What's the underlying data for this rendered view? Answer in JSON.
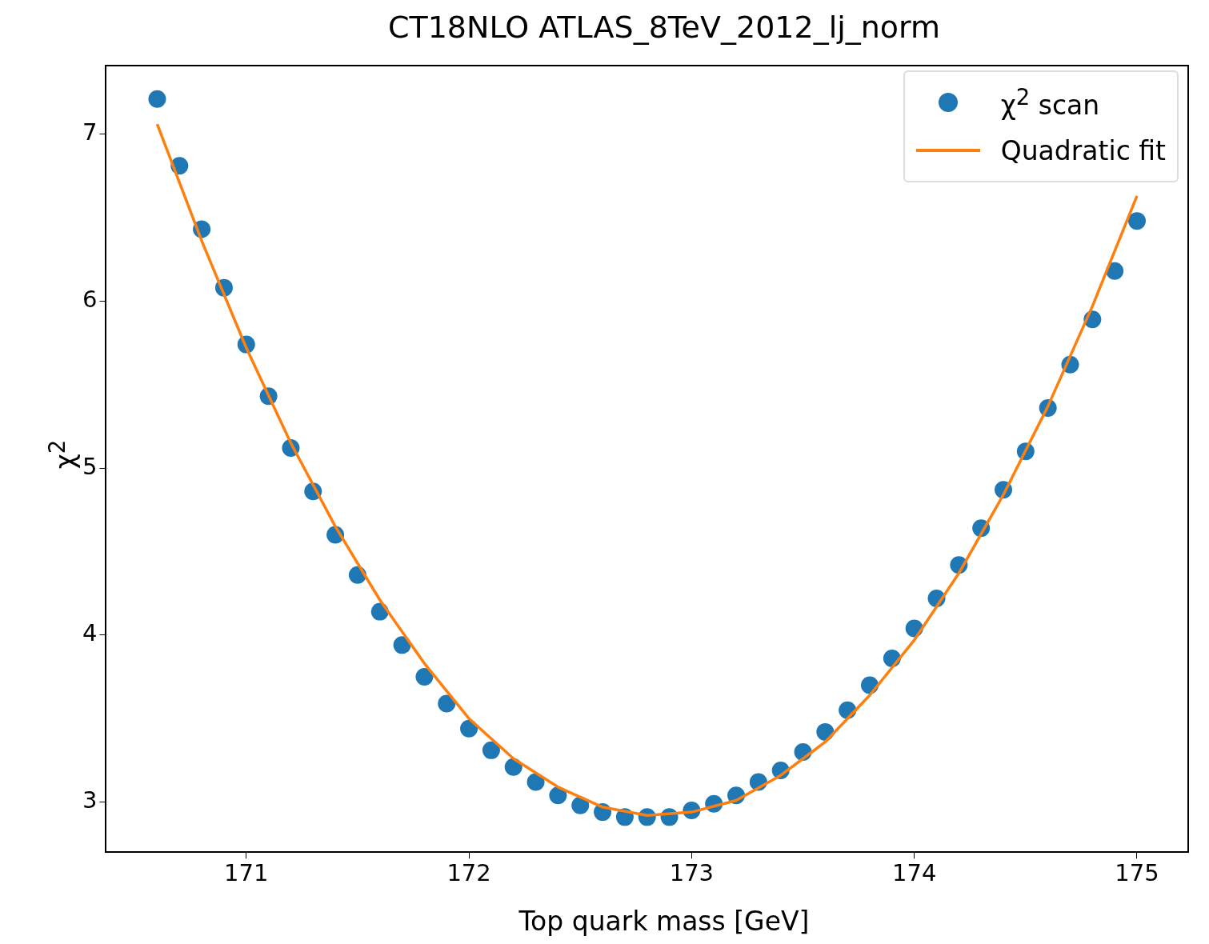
{
  "chart_data": {
    "type": "scatter",
    "title": "CT18NLO ATLAS_8TeV_2012_lj_norm",
    "xlabel": "Top quark mass [GeV]",
    "ylabel": "χ$^{2}$",
    "xlim": [
      170.37,
      175.23
    ],
    "ylim": [
      2.7,
      7.41
    ],
    "xticks": [
      171,
      172,
      173,
      174,
      175
    ],
    "yticks": [
      3,
      4,
      5,
      6,
      7
    ],
    "grid": false,
    "legend": "top right",
    "series": [
      {
        "name": "χ$^{2}$ scan",
        "marker": "circle",
        "color": "#1f77b4",
        "x": [
          170.6,
          170.7,
          170.8,
          170.9,
          171.0,
          171.1,
          171.2,
          171.3,
          171.4,
          171.5,
          171.6,
          171.7,
          171.8,
          171.9,
          172.0,
          172.1,
          172.2,
          172.3,
          172.4,
          172.5,
          172.6,
          172.7,
          172.8,
          172.9,
          173.0,
          173.1,
          173.2,
          173.3,
          173.4,
          173.5,
          173.6,
          173.7,
          173.8,
          173.9,
          174.0,
          174.1,
          174.2,
          174.3,
          174.4,
          174.5,
          174.6,
          174.7,
          174.8,
          174.9,
          175.0
        ],
        "values": [
          7.21,
          6.81,
          6.43,
          6.08,
          5.74,
          5.43,
          5.12,
          4.86,
          4.6,
          4.36,
          4.14,
          3.94,
          3.75,
          3.59,
          3.44,
          3.31,
          3.21,
          3.12,
          3.04,
          2.98,
          2.94,
          2.91,
          2.91,
          2.91,
          2.95,
          2.99,
          3.04,
          3.12,
          3.19,
          3.3,
          3.42,
          3.55,
          3.7,
          3.86,
          4.04,
          4.22,
          4.42,
          4.64,
          4.87,
          5.1,
          5.36,
          5.62,
          5.89,
          6.18,
          6.48
        ]
      },
      {
        "name": "Quadratic fit",
        "type": "line",
        "marker": "none",
        "line_style": "solid",
        "color": "#ff7f0e",
        "x": [
          170.6,
          170.8,
          171.0,
          171.2,
          171.4,
          171.6,
          171.8,
          172.0,
          172.2,
          172.4,
          172.6,
          172.8,
          173.0,
          173.2,
          173.4,
          173.6,
          173.8,
          174.0,
          174.2,
          174.4,
          174.6,
          174.8,
          175.0
        ],
        "values": [
          7.06,
          6.36,
          5.72,
          5.15,
          4.65,
          4.21,
          3.83,
          3.5,
          3.26,
          3.09,
          2.97,
          2.92,
          2.94,
          3.01,
          3.16,
          3.36,
          3.64,
          3.97,
          4.37,
          4.84,
          5.37,
          5.97,
          6.63
        ]
      }
    ]
  }
}
